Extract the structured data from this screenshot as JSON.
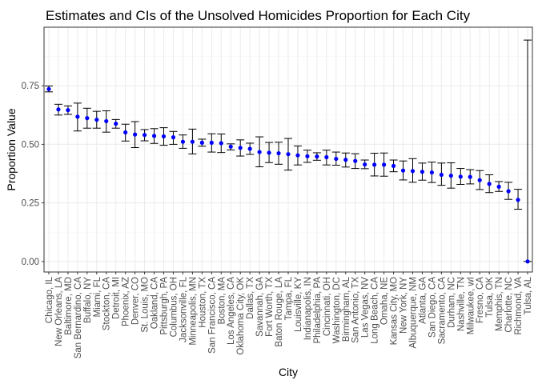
{
  "chart_data": {
    "type": "scatter",
    "title": "Estimates and CIs of the Unsolved Homicides Proportion for Each City",
    "xlabel": "City",
    "ylabel": "Proportion Value",
    "ylim": [
      -0.045,
      1.0
    ],
    "yticks": [
      0.0,
      0.25,
      0.5,
      0.75
    ],
    "ytick_labels": [
      "0.00",
      "0.25",
      "0.50",
      "0.75"
    ],
    "grid": true,
    "point_color": "#0000ff",
    "errorbar_color": "#000000",
    "categories": [
      "Chicago, IL",
      "New Orleans, LA",
      "Baltimore, MD",
      "San Bernardino, CA",
      "Buffalo, NY",
      "Miami, FL",
      "Stockton, CA",
      "Detroit, MI",
      "Phoenix, AZ",
      "Denver, CO",
      "St. Louis, MO",
      "Oakland, CA",
      "Pittsburgh, PA",
      "Columbus, OH",
      "Jacksonville, FL",
      "Minneapolis, MN",
      "Houston, TX",
      "San Francisco, CA",
      "Boston, MA",
      "Los Angeles, CA",
      "Oklahoma City, OK",
      "Dallas, TX",
      "Savannah, GA",
      "Fort Worth, TX",
      "Baton Rouge, LA",
      "Tampa, FL",
      "Louisville, KY",
      "Indianapolis, IN",
      "Philadelphia, PA",
      "Cincinnati, OH",
      "Washington, DC",
      "Birmingham, AL",
      "San Antonio, TX",
      "Las Vegas, NV",
      "Long Beach, CA",
      "Omaha, NE",
      "Kansas City, MO",
      "New York, NY",
      "Albuquerque, NM",
      "Atlanta, GA",
      "San Diego, CA",
      "Sacramento, CA",
      "Durham, NC",
      "Nashville, TN",
      "Milwaukee, wI",
      "Fresno, CA",
      "Tulsa, OK",
      "Memphis, TN",
      "Charlotte, NC",
      "Richmond, VA",
      "Tulsa, AL"
    ],
    "estimates": [
      0.736,
      0.649,
      0.646,
      0.618,
      0.612,
      0.605,
      0.599,
      0.588,
      0.551,
      0.542,
      0.54,
      0.536,
      0.534,
      0.53,
      0.511,
      0.511,
      0.507,
      0.507,
      0.505,
      0.49,
      0.485,
      0.481,
      0.467,
      0.464,
      0.462,
      0.458,
      0.453,
      0.449,
      0.448,
      0.445,
      0.438,
      0.434,
      0.429,
      0.414,
      0.413,
      0.413,
      0.408,
      0.388,
      0.386,
      0.383,
      0.38,
      0.37,
      0.366,
      0.362,
      0.361,
      0.347,
      0.331,
      0.319,
      0.3,
      0.263,
      0.0
    ],
    "ci_lower": [
      0.724,
      0.625,
      0.628,
      0.557,
      0.569,
      0.569,
      0.552,
      0.569,
      0.514,
      0.486,
      0.515,
      0.504,
      0.496,
      0.5,
      0.483,
      0.459,
      0.492,
      0.467,
      0.465,
      0.476,
      0.45,
      0.457,
      0.404,
      0.422,
      0.415,
      0.39,
      0.412,
      0.423,
      0.432,
      0.412,
      0.411,
      0.403,
      0.397,
      0.396,
      0.365,
      0.364,
      0.383,
      0.348,
      0.338,
      0.347,
      0.337,
      0.325,
      0.313,
      0.329,
      0.331,
      0.307,
      0.294,
      0.299,
      0.265,
      0.223,
      0.0
    ],
    "ci_upper": [
      0.749,
      0.671,
      0.664,
      0.676,
      0.654,
      0.641,
      0.643,
      0.606,
      0.586,
      0.597,
      0.563,
      0.567,
      0.571,
      0.555,
      0.54,
      0.565,
      0.522,
      0.545,
      0.544,
      0.502,
      0.519,
      0.505,
      0.532,
      0.508,
      0.509,
      0.525,
      0.493,
      0.475,
      0.464,
      0.475,
      0.467,
      0.463,
      0.46,
      0.433,
      0.462,
      0.463,
      0.433,
      0.429,
      0.439,
      0.42,
      0.424,
      0.42,
      0.421,
      0.397,
      0.392,
      0.388,
      0.37,
      0.341,
      0.338,
      0.308,
      0.945
    ]
  }
}
